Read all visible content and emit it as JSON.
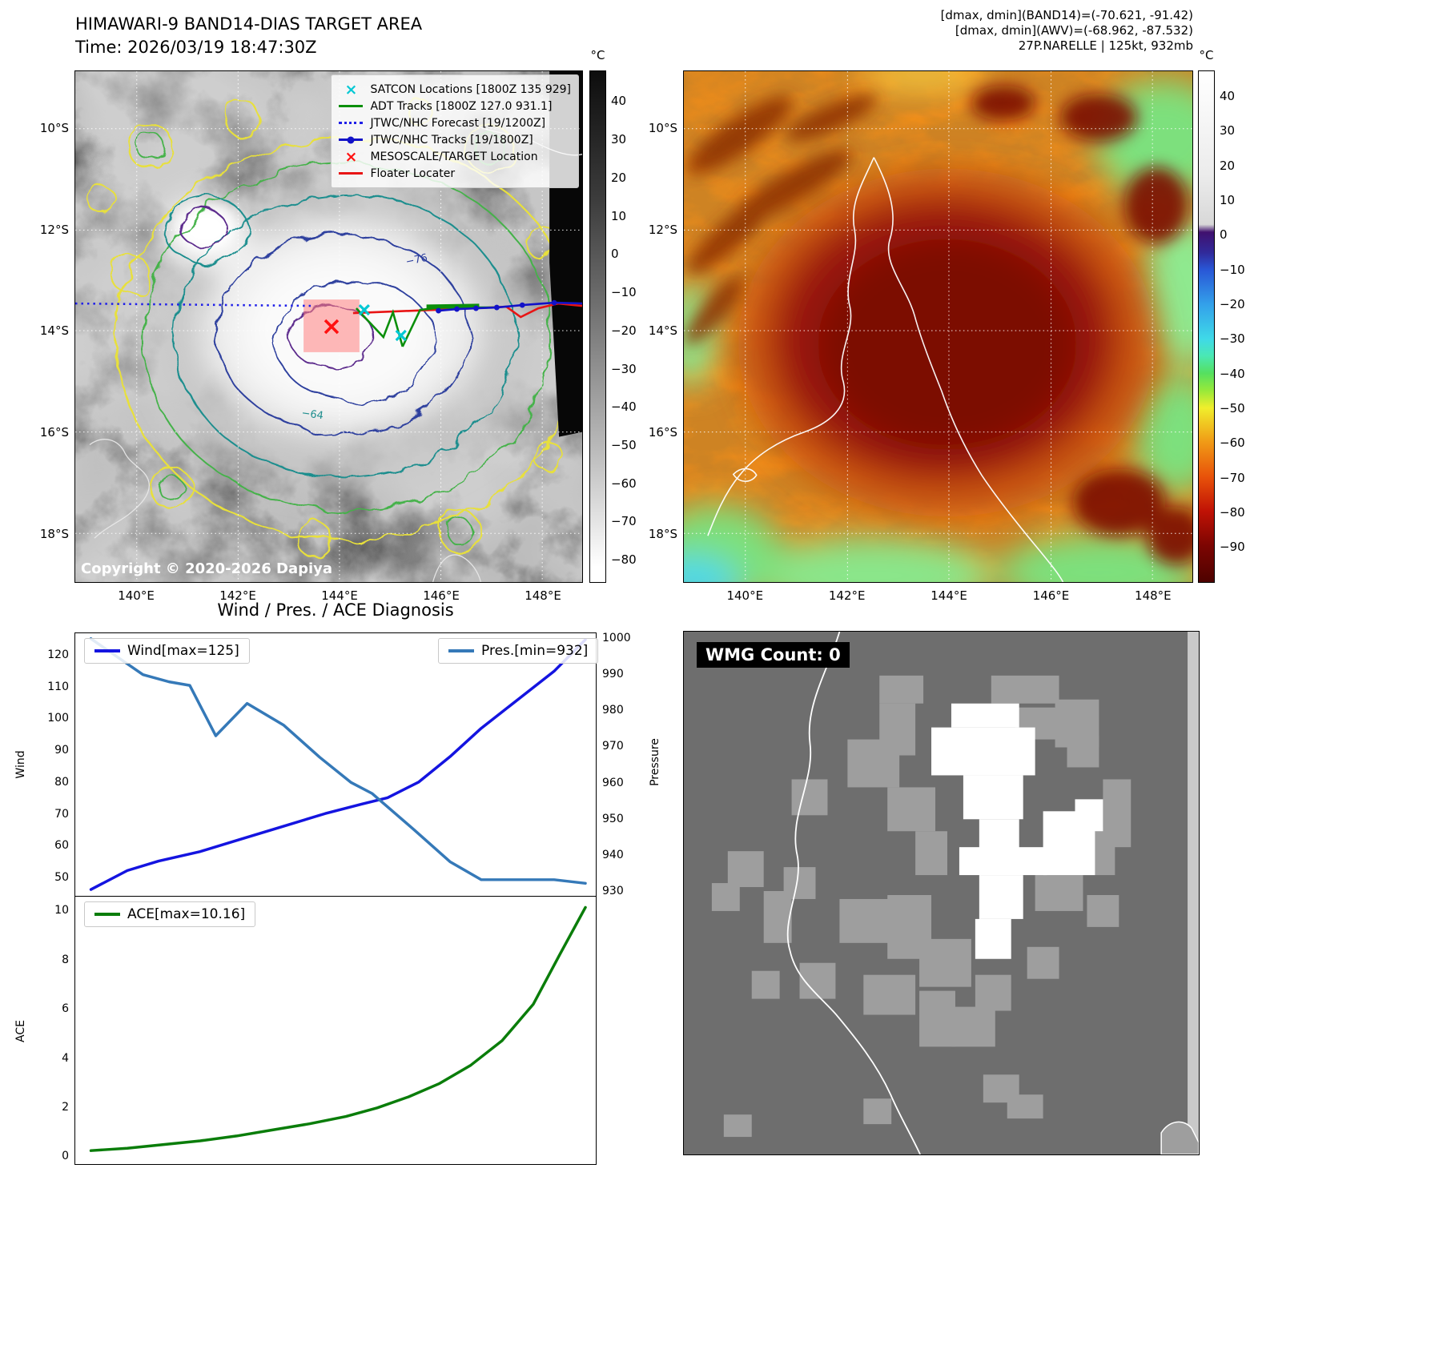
{
  "band14_panel": {
    "title": "HIMAWARI-9 BAND14-DIAS TARGET AREA",
    "time_line": "Time: 2026/03/19 18:47:30Z",
    "legend": [
      {
        "label": "SATCON Locations [1800Z 135 929]",
        "marker": "x-marker",
        "color": "#00c8d4"
      },
      {
        "label": "ADT Tracks [1800Z 127.0 931.1]",
        "marker": "solid-line",
        "color": "#0b8f0b"
      },
      {
        "label": "JTWC/NHC Forecast [19/1200Z]",
        "marker": "dotted-line",
        "color": "#2020e8"
      },
      {
        "label": "JTWC/NHC Tracks [19/1800Z]",
        "marker": "line-with-dot",
        "color": "#1212c8"
      },
      {
        "label": "MESOSCALE/TARGET Location",
        "marker": "x-marker",
        "color": "#ff1111"
      },
      {
        "label": "Floater Locater",
        "marker": "solid-line",
        "color": "#e81414"
      }
    ],
    "copyright": "Copyright © 2020-2026 Dapiya",
    "lat_ticks": [
      "10°S",
      "12°S",
      "14°S",
      "16°S",
      "18°S"
    ],
    "lon_ticks": [
      "140°E",
      "142°E",
      "144°E",
      "146°E",
      "148°E"
    ],
    "colorbar": {
      "unit": "°C",
      "ticks": [
        "40",
        "30",
        "20",
        "10",
        "0",
        "−10",
        "−20",
        "−30",
        "−40",
        "−50",
        "−60",
        "−70",
        "−80"
      ]
    },
    "contour_labels": {
      "inner": "−76",
      "outer": "−64"
    }
  },
  "awv_panel": {
    "info_lines": [
      "[dmax, dmin](BAND14)=(-70.621, -91.42)",
      "[dmax, dmin](AWV)=(-68.962, -87.532)",
      "27P.NARELLE | 125kt, 932mb"
    ],
    "lat_ticks": [
      "10°S",
      "12°S",
      "14°S",
      "16°S",
      "18°S"
    ],
    "lon_ticks": [
      "140°E",
      "142°E",
      "144°E",
      "146°E",
      "148°E"
    ],
    "colorbar": {
      "unit": "°C",
      "ticks": [
        "40",
        "30",
        "20",
        "10",
        "0",
        "−10",
        "−20",
        "−30",
        "−40",
        "−50",
        "−60",
        "−70",
        "−80",
        "−90"
      ]
    }
  },
  "chart_data": [
    {
      "type": "line",
      "title": "Wind / Pres. / ACE Diagnosis",
      "xlabel": "",
      "series": [
        {
          "name": "Wind[max=125]",
          "axis": "left",
          "color": "#1414e0",
          "width": 3.5,
          "x": [
            0.03,
            0.1,
            0.16,
            0.24,
            0.32,
            0.4,
            0.48,
            0.55,
            0.6,
            0.66,
            0.72,
            0.78,
            0.85,
            0.92,
            0.98
          ],
          "values": [
            46,
            52,
            55,
            58,
            62,
            66,
            70,
            73,
            75,
            80,
            88,
            97,
            106,
            115,
            125
          ]
        },
        {
          "name": "Pres.[min=932]",
          "axis": "right",
          "color": "#3579b8",
          "width": 3.5,
          "x": [
            0.03,
            0.13,
            0.18,
            0.22,
            0.27,
            0.33,
            0.4,
            0.47,
            0.53,
            0.57,
            0.65,
            0.72,
            0.78,
            0.85,
            0.92,
            0.98
          ],
          "values": [
            1000,
            990,
            988,
            987,
            973,
            982,
            976,
            967,
            960,
            957,
            947,
            938,
            933,
            933,
            933,
            932
          ]
        }
      ],
      "left_axis": {
        "label": "Wind",
        "ticks": [
          50,
          60,
          70,
          80,
          90,
          100,
          110,
          120
        ],
        "range": [
          44,
          127
        ]
      },
      "right_axis": {
        "label": "Pressure",
        "ticks": [
          930,
          940,
          950,
          960,
          970,
          980,
          990,
          1000
        ],
        "range": [
          928.5,
          1001.5
        ]
      },
      "grid": false,
      "legend_position": "top-left-and-top-right"
    },
    {
      "type": "line",
      "series": [
        {
          "name": "ACE[max=10.16]",
          "axis": "left",
          "color": "#0a7d0a",
          "width": 3.5,
          "x": [
            0.03,
            0.1,
            0.17,
            0.24,
            0.31,
            0.38,
            0.45,
            0.52,
            0.58,
            0.64,
            0.7,
            0.76,
            0.82,
            0.88,
            0.93,
            0.98
          ],
          "values": [
            0.2,
            0.3,
            0.45,
            0.6,
            0.8,
            1.05,
            1.3,
            1.6,
            1.95,
            2.4,
            2.95,
            3.7,
            4.7,
            6.2,
            8.2,
            10.16
          ]
        }
      ],
      "left_axis": {
        "label": "ACE",
        "ticks": [
          0,
          2,
          4,
          6,
          8,
          10
        ],
        "range": [
          -0.35,
          10.6
        ]
      },
      "grid": false,
      "legend_position": "top-left"
    }
  ],
  "wmg_panel": {
    "count_label": "WMG Count: 0"
  }
}
